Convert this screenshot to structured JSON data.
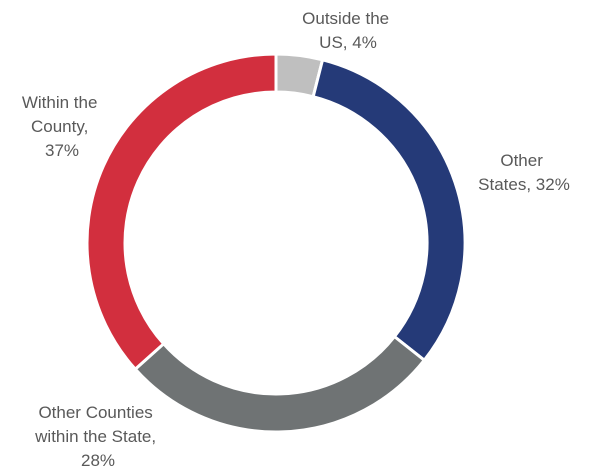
{
  "chart_data": {
    "type": "pie",
    "variant": "donut",
    "categories": [
      "Outside the US",
      "Other States",
      "Other Counties within the State",
      "Within the County"
    ],
    "values": [
      4,
      32,
      28,
      37
    ],
    "data_labels": [
      [
        "Outside the",
        "US, 4%"
      ],
      [
        "Other",
        "States, 32%"
      ],
      [
        "Other Counties",
        "within the State,",
        "28%"
      ],
      [
        "Within the",
        "County,",
        "37%"
      ]
    ],
    "colors": [
      "#bfbfbf",
      "#253a78",
      "#6f7374",
      "#d22f3e"
    ],
    "legend": "none"
  }
}
